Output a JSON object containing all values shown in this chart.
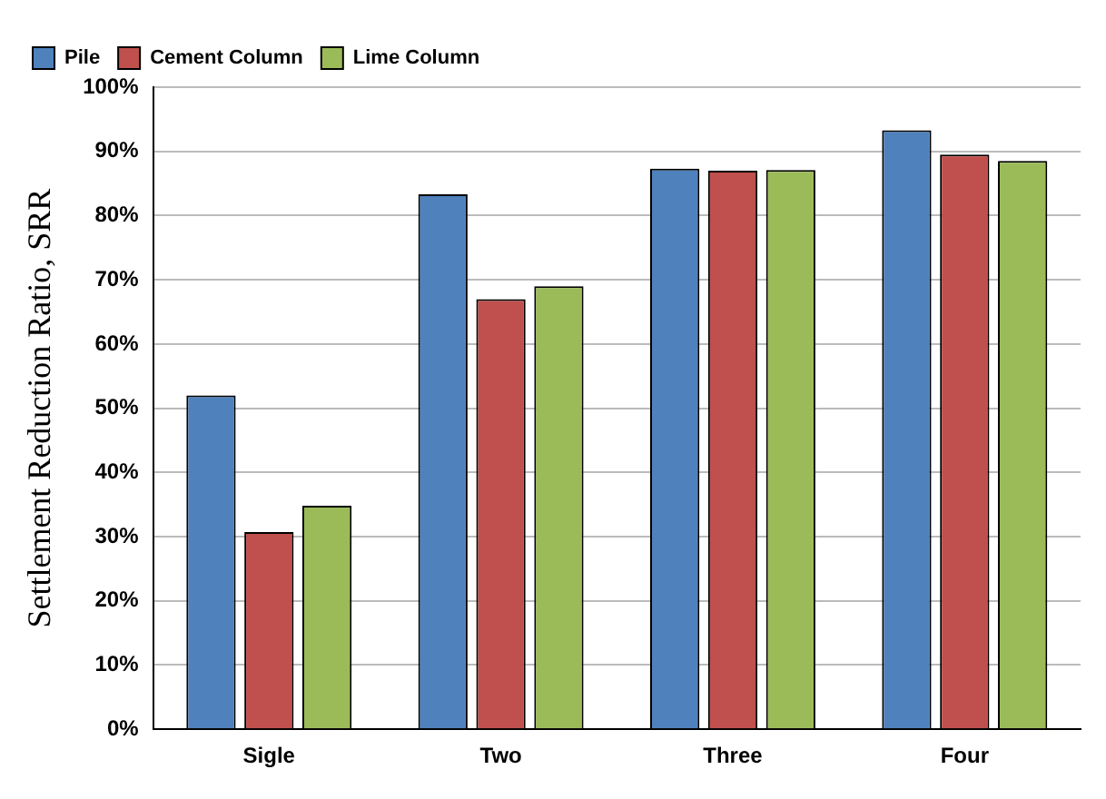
{
  "chart_data": {
    "type": "bar",
    "ylabel": "Settlement Reduction Ratio, SRR",
    "categories": [
      "Sigle",
      "Two",
      "Three",
      "Four"
    ],
    "series": [
      {
        "name": "Pile",
        "color": "#4f81bd",
        "values": [
          52,
          83.3,
          87.3,
          93.3
        ]
      },
      {
        "name": "Cement Column",
        "color": "#c0504d",
        "values": [
          30.7,
          67,
          87,
          89.5
        ]
      },
      {
        "name": "Lime Column",
        "color": "#9bbb59",
        "values": [
          34.8,
          69,
          87.1,
          88.5
        ]
      }
    ],
    "ylim": [
      0,
      100
    ],
    "yticks": [
      {
        "value": 0,
        "label": "0%"
      },
      {
        "value": 10,
        "label": "10%"
      },
      {
        "value": 20,
        "label": "20%"
      },
      {
        "value": 30,
        "label": "30%"
      },
      {
        "value": 40,
        "label": "40%"
      },
      {
        "value": 50,
        "label": "50%"
      },
      {
        "value": 60,
        "label": "60%"
      },
      {
        "value": 70,
        "label": "70%"
      },
      {
        "value": 80,
        "label": "80%"
      },
      {
        "value": 90,
        "label": "90%"
      },
      {
        "value": 100,
        "label": "100%"
      }
    ],
    "grid": "y",
    "legend": "top left"
  }
}
